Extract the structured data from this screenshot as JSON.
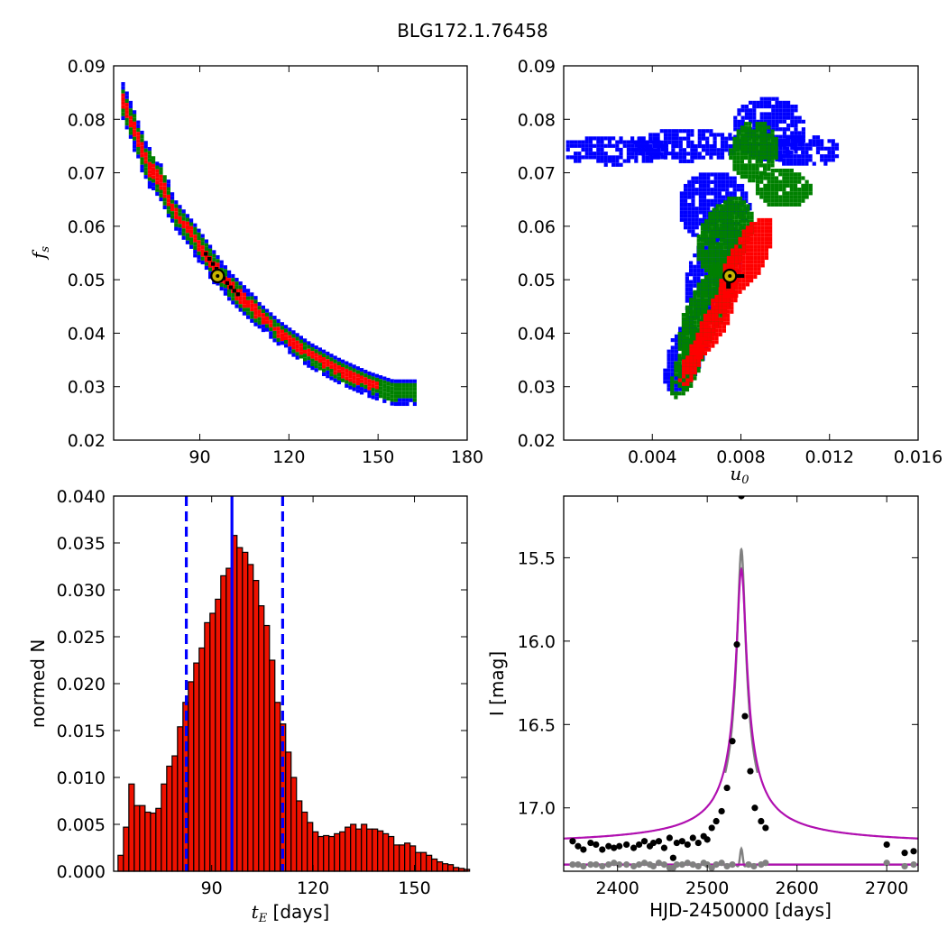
{
  "title": "BLG172.1.76458",
  "colors": {
    "sigma1": "#ff0000",
    "sigma2": "#008000",
    "sigma3": "#0000ff",
    "best": "#000000",
    "marker_fill": "#c8b400",
    "hist_fill": "#ee1100",
    "model": "#b010b0",
    "residual": "#808080",
    "dash": "#0000ff"
  },
  "chart_data": [
    {
      "type": "heatmap",
      "panel": "tE-fs",
      "ylabel_symbol": "f",
      "ylabel_sub": "s",
      "xlim": [
        61,
        180
      ],
      "ylim": [
        0.02,
        0.09
      ],
      "xticks": [
        "90",
        "120",
        "150",
        "180"
      ],
      "yticks": [
        "0.02",
        "0.03",
        "0.04",
        "0.05",
        "0.06",
        "0.07",
        "0.08",
        "0.09"
      ],
      "best_fit": {
        "x": 96,
        "y": 0.0507
      },
      "ridge": [
        [
          64,
          0.0835
        ],
        [
          68,
          0.078
        ],
        [
          72,
          0.072
        ],
        [
          77,
          0.068
        ],
        [
          82,
          0.062
        ],
        [
          88,
          0.058
        ],
        [
          95,
          0.0525
        ],
        [
          100,
          0.0488
        ],
        [
          108,
          0.0445
        ],
        [
          117,
          0.04
        ],
        [
          127,
          0.036
        ],
        [
          137,
          0.033
        ],
        [
          147,
          0.0305
        ],
        [
          155,
          0.029
        ]
      ]
    },
    {
      "type": "heatmap",
      "panel": "u0-fs",
      "xlabel_symbol": "u",
      "xlabel_sub": "0",
      "xlim": [
        0.0,
        0.016
      ],
      "ylim": [
        0.02,
        0.09
      ],
      "xticks": [
        "0.004",
        "0.008",
        "0.012",
        "0.016"
      ],
      "yticks": [
        "0.02",
        "0.03",
        "0.04",
        "0.05",
        "0.06",
        "0.07",
        "0.08",
        "0.09"
      ],
      "best_fit": {
        "x": 0.0075,
        "y": 0.0507
      }
    },
    {
      "type": "bar",
      "panel": "tE-histogram",
      "xlabel_symbol": "t",
      "xlabel_sub": "E",
      "xlabel_unit": " [days]",
      "ylabel": "normed N",
      "xlim": [
        61,
        165.6
      ],
      "ylim": [
        0,
        0.04
      ],
      "xticks": [
        "90",
        "120",
        "150"
      ],
      "yticks": [
        "0.000",
        "0.005",
        "0.010",
        "0.015",
        "0.020",
        "0.025",
        "0.030",
        "0.035",
        "0.040"
      ],
      "bin_start": 62.3,
      "bin_width": 1.6,
      "values": [
        0.0017,
        0.0047,
        0.0093,
        0.007,
        0.007,
        0.0063,
        0.0062,
        0.0067,
        0.0093,
        0.0112,
        0.0123,
        0.0154,
        0.018,
        0.0202,
        0.0222,
        0.0238,
        0.0265,
        0.0275,
        0.029,
        0.0315,
        0.0323,
        0.0358,
        0.0345,
        0.034,
        0.0327,
        0.031,
        0.0283,
        0.0262,
        0.0225,
        0.018,
        0.0157,
        0.0127,
        0.01,
        0.0075,
        0.0063,
        0.0052,
        0.0042,
        0.0037,
        0.0038,
        0.0037,
        0.004,
        0.0042,
        0.0047,
        0.005,
        0.0045,
        0.005,
        0.0045,
        0.0045,
        0.0043,
        0.004,
        0.0037,
        0.0028,
        0.0028,
        0.003,
        0.0027,
        0.002,
        0.002,
        0.0017,
        0.0013,
        0.001,
        0.0008,
        0.0007,
        0.0004,
        0.0003,
        0.0002
      ],
      "vlines": {
        "median": 96,
        "low": 82.5,
        "high": 111
      }
    },
    {
      "type": "scatter",
      "panel": "lightcurve",
      "xlabel": "HJD-2450000 [days]",
      "ylabel": "I [mag]",
      "xlim": [
        2340,
        2735
      ],
      "ylim": [
        17.38,
        15.13
      ],
      "ylim_note": "inverted magnitude axis",
      "xticks": [
        "2400",
        "2500",
        "2600",
        "2700"
      ],
      "yticks": [
        "15.5",
        "16.0",
        "16.5",
        "17.0"
      ],
      "model": {
        "t0": 2538,
        "baseline": 17.23,
        "peak": 15.57,
        "width": 5.5
      },
      "points": [
        [
          2350,
          17.2
        ],
        [
          2356,
          17.23
        ],
        [
          2362,
          17.25
        ],
        [
          2370,
          17.21
        ],
        [
          2376,
          17.22
        ],
        [
          2383,
          17.25
        ],
        [
          2390,
          17.23
        ],
        [
          2396,
          17.24
        ],
        [
          2402,
          17.23
        ],
        [
          2410,
          17.22
        ],
        [
          2418,
          17.24
        ],
        [
          2424,
          17.22
        ],
        [
          2430,
          17.2
        ],
        [
          2436,
          17.23
        ],
        [
          2440,
          17.21
        ],
        [
          2446,
          17.2
        ],
        [
          2452,
          17.24
        ],
        [
          2458,
          17.18
        ],
        [
          2462,
          17.3
        ],
        [
          2466,
          17.21
        ],
        [
          2472,
          17.2
        ],
        [
          2478,
          17.22
        ],
        [
          2484,
          17.18
        ],
        [
          2490,
          17.21
        ],
        [
          2496,
          17.17
        ],
        [
          2500,
          17.19
        ],
        [
          2505,
          17.12
        ],
        [
          2510,
          17.08
        ],
        [
          2516,
          17.02
        ],
        [
          2522,
          16.88
        ],
        [
          2528,
          16.6
        ],
        [
          2533,
          16.02
        ],
        [
          2538,
          15.13
        ],
        [
          2542,
          16.45
        ],
        [
          2548,
          16.78
        ],
        [
          2553,
          17.0
        ],
        [
          2560,
          17.08
        ],
        [
          2565,
          17.12
        ],
        [
          2700,
          17.22
        ],
        [
          2720,
          17.27
        ],
        [
          2730,
          17.26
        ]
      ],
      "residual_offset": 17.34,
      "residuals": [
        [
          2350,
          0.0
        ],
        [
          2356,
          0.0
        ],
        [
          2362,
          0.01
        ],
        [
          2370,
          0.0
        ],
        [
          2376,
          0.0
        ],
        [
          2383,
          0.01
        ],
        [
          2390,
          0.0
        ],
        [
          2396,
          -0.01
        ],
        [
          2402,
          0.0
        ],
        [
          2410,
          0.0
        ],
        [
          2418,
          0.01
        ],
        [
          2424,
          0.0
        ],
        [
          2430,
          -0.01
        ],
        [
          2436,
          0.0
        ],
        [
          2440,
          0.01
        ],
        [
          2446,
          -0.01
        ],
        [
          2452,
          0.0
        ],
        [
          2458,
          0.02
        ],
        [
          2462,
          0.02
        ],
        [
          2466,
          0.0
        ],
        [
          2472,
          0.0
        ],
        [
          2478,
          -0.01
        ],
        [
          2484,
          0.0
        ],
        [
          2490,
          0.01
        ],
        [
          2496,
          -0.01
        ],
        [
          2500,
          0.0
        ],
        [
          2505,
          0.02
        ],
        [
          2510,
          0.0
        ],
        [
          2516,
          -0.01
        ],
        [
          2522,
          0.01
        ],
        [
          2528,
          0.0
        ],
        [
          2546,
          0.0
        ],
        [
          2552,
          0.01
        ],
        [
          2560,
          0.0
        ],
        [
          2565,
          -0.01
        ],
        [
          2700,
          -0.01
        ],
        [
          2720,
          0.01
        ],
        [
          2730,
          0.0
        ]
      ]
    }
  ]
}
